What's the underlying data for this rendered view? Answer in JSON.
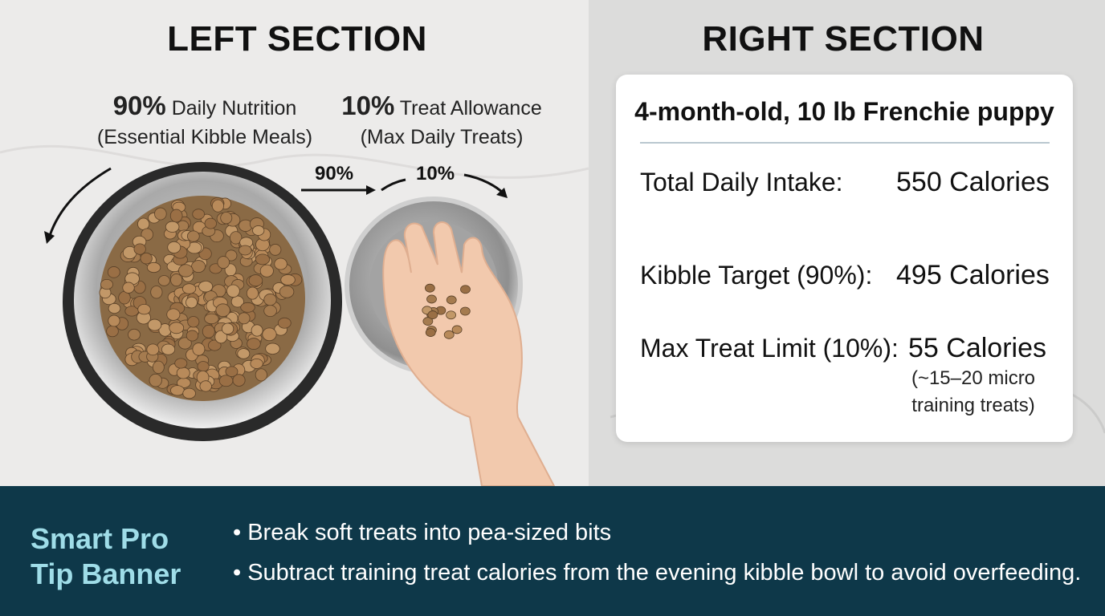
{
  "left": {
    "title": "LEFT SECTION",
    "kibble": {
      "percent": "90%",
      "label": "Daily Nutrition",
      "sub": "(Essential Kibble Meals)"
    },
    "treat": {
      "percent": "10%",
      "label": "Treat Allowance",
      "sub": "(Max Daily Treats)"
    },
    "arrow_labels": [
      "90%",
      "10%"
    ]
  },
  "right": {
    "title": "RIGHT SECTION",
    "card": {
      "title": "4-month-old, 10 lb Frenchie puppy",
      "rows": [
        {
          "label": "Total Daily Intake:",
          "value": "550 Calories"
        },
        {
          "label": "Kibble Target (90%):",
          "value": "495 Calories"
        },
        {
          "label": "Max Treat Limit (10%):",
          "value": "55 Calories",
          "note": [
            "(~15–20 micro",
            "training treats)"
          ]
        }
      ]
    }
  },
  "banner": {
    "title": [
      "Smart Pro",
      "Tip Banner"
    ],
    "tips": [
      "• Break soft treats into pea-sized bits",
      "• Subtract training treat calories from the evening kibble bowl to avoid overfeeding."
    ]
  }
}
